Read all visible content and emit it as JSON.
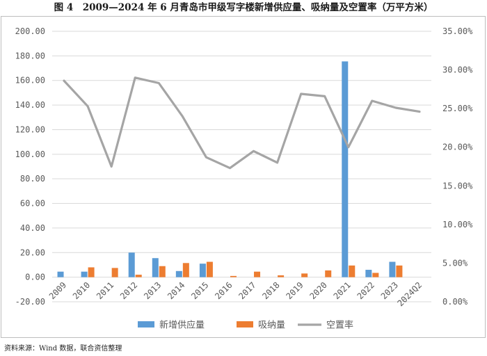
{
  "title": "图 4　2009—2024 年 6 月青岛市甲级写字楼新增供应量、吸纳量及空置率（万平方米）",
  "source": "资料来源：Wind 数据，联合资信整理",
  "colors": {
    "supply": "#5b9bd5",
    "absorption": "#ed7d31",
    "vacancy": "#a5a5a5",
    "grid": "#d9d9d9",
    "axis_text": "#595959"
  },
  "chart_data": {
    "type": "bar",
    "categories": [
      "2009",
      "2010",
      "2011",
      "2012",
      "2013",
      "2014",
      "2015",
      "2016",
      "2017",
      "2018",
      "2019",
      "2020",
      "2021",
      "2022",
      "2023",
      "2024Q2"
    ],
    "series": [
      {
        "name": "新增供应量",
        "type": "bar",
        "axis": "left",
        "values": [
          4.5,
          4.5,
          0,
          20,
          15.5,
          5,
          11,
          0,
          0,
          0,
          0,
          0,
          175.5,
          6,
          12.5,
          0
        ]
      },
      {
        "name": "吸纳量",
        "type": "bar",
        "axis": "left",
        "values": [
          0,
          8,
          7.5,
          2,
          9,
          11.5,
          12.5,
          1,
          4.5,
          1.5,
          3,
          5.5,
          9.5,
          3.5,
          9.5,
          0
        ]
      },
      {
        "name": "空置率",
        "type": "line",
        "axis": "right",
        "unit": "%",
        "values": [
          28.6,
          25.3,
          17.5,
          29.0,
          28.3,
          24.0,
          18.7,
          17.3,
          19.5,
          18.0,
          26.9,
          26.6,
          20.0,
          26.0,
          25.1,
          24.6
        ]
      }
    ],
    "left_axis": {
      "ylim": [
        -20,
        200
      ],
      "ticks": [
        "-20.00",
        "0.00",
        "20.00",
        "40.00",
        "60.00",
        "80.00",
        "100.00",
        "120.00",
        "140.00",
        "160.00",
        "180.00",
        "200.00"
      ]
    },
    "right_axis": {
      "ylim": [
        0,
        35
      ],
      "ticks": [
        "0.00%",
        "5.00%",
        "10.00%",
        "15.00%",
        "20.00%",
        "25.00%",
        "30.00%",
        "35.00%"
      ]
    },
    "grid": true,
    "legend": "bottom"
  }
}
